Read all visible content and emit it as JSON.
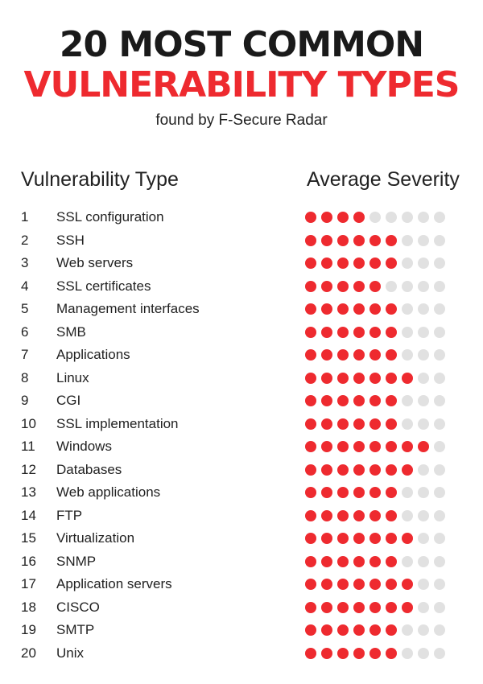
{
  "header": {
    "title_line1": "20 MOST COMMON",
    "title_line2": "VULNERABILITY TYPES",
    "subtitle": "found by F-Secure Radar"
  },
  "colors": {
    "accent": "#ee2a2f",
    "empty_dot": "#e1e1e1",
    "text": "#222222"
  },
  "chart_data": {
    "type": "table",
    "columns": [
      "Vulnerability Type",
      "Average Severity"
    ],
    "severity_max": 9,
    "rows": [
      {
        "rank": "1",
        "name": "SSL configuration",
        "severity": 4
      },
      {
        "rank": "2",
        "name": "SSH",
        "severity": 6
      },
      {
        "rank": "3",
        "name": "Web servers",
        "severity": 6
      },
      {
        "rank": "4",
        "name": "SSL certificates",
        "severity": 5
      },
      {
        "rank": "5",
        "name": "Management interfaces",
        "severity": 6
      },
      {
        "rank": "6",
        "name": "SMB",
        "severity": 6
      },
      {
        "rank": "7",
        "name": "Applications",
        "severity": 6
      },
      {
        "rank": "8",
        "name": "Linux",
        "severity": 7
      },
      {
        "rank": "9",
        "name": "CGI",
        "severity": 6
      },
      {
        "rank": "10",
        "name": "SSL implementation",
        "severity": 6
      },
      {
        "rank": "11",
        "name": "Windows",
        "severity": 8
      },
      {
        "rank": "12",
        "name": "Databases",
        "severity": 7
      },
      {
        "rank": "13",
        "name": "Web applications",
        "severity": 6
      },
      {
        "rank": "14",
        "name": "FTP",
        "severity": 6
      },
      {
        "rank": "15",
        "name": "Virtualization",
        "severity": 7
      },
      {
        "rank": "16",
        "name": "SNMP",
        "severity": 6
      },
      {
        "rank": "17",
        "name": "Application servers",
        "severity": 7
      },
      {
        "rank": "18",
        "name": "CISCO",
        "severity": 7
      },
      {
        "rank": "19",
        "name": "SMTP",
        "severity": 6
      },
      {
        "rank": "20",
        "name": "Unix",
        "severity": 6
      }
    ]
  }
}
